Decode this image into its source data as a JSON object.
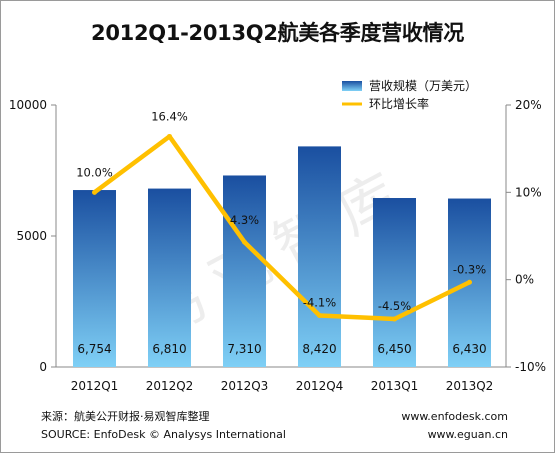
{
  "chart_data": {
    "type": "bar",
    "title": "2012Q1-2013Q2航美各季度营收情况",
    "categories": [
      "2012Q1",
      "2012Q2",
      "2012Q3",
      "2012Q4",
      "2013Q1",
      "2013Q2"
    ],
    "series": [
      {
        "name": "营收规模（万美元）",
        "type": "bar",
        "axis": "left",
        "values": [
          6754,
          6810,
          7310,
          8420,
          6450,
          6430
        ],
        "value_labels": [
          "6,754",
          "6,810",
          "7,310",
          "8,420",
          "6,450",
          "6,430"
        ]
      },
      {
        "name": "环比增长率",
        "type": "line",
        "axis": "right",
        "values": [
          10.0,
          16.4,
          4.3,
          -4.1,
          -4.5,
          -0.3
        ],
        "value_labels": [
          "10.0%",
          "16.4%",
          "4.3%",
          "-4.1%",
          "-4.5%",
          "-0.3%"
        ]
      }
    ],
    "y_left": {
      "min": 0,
      "max": 10000,
      "ticks": [
        0,
        5000,
        10000
      ],
      "tick_labels": [
        "0",
        "5000",
        "10000"
      ]
    },
    "y_right": {
      "min": -10,
      "max": 20,
      "ticks": [
        -10,
        0,
        10,
        20
      ],
      "tick_labels": [
        "-10%",
        "0%",
        "10%",
        "20%"
      ]
    },
    "grid": false,
    "legend_position": "top-right",
    "watermark": "易观智库",
    "colors": {
      "bar_top": "#1a4fa0",
      "bar_bottom": "#7fd0f6",
      "line": "#ffc000"
    }
  },
  "footer": {
    "source_cn": "来源：航美公开财报·易观智库整理",
    "source_en": "SOURCE: EnfoDesk © Analysys International",
    "site1": "www.enfodesk.com",
    "site2": "www.eguan.cn"
  }
}
